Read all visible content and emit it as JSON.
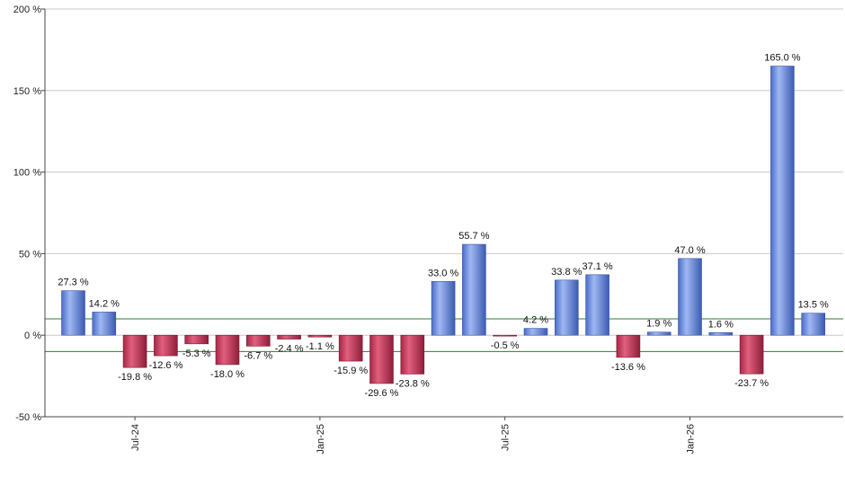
{
  "chart_data": {
    "type": "bar",
    "ylim": [
      -50,
      200
    ],
    "y_ticks": [
      {
        "value": 200,
        "label": "200 %"
      },
      {
        "value": 150,
        "label": "150 %"
      },
      {
        "value": 100,
        "label": "100 %"
      },
      {
        "value": 50,
        "label": "50 %"
      },
      {
        "value": 0,
        "label": "0 %"
      },
      {
        "value": -50,
        "label": "-50 %"
      }
    ],
    "x_ticks": [
      {
        "index": 2,
        "label": "Jul-24"
      },
      {
        "index": 8,
        "label": "Jan-25"
      },
      {
        "index": 14,
        "label": "Jul-25"
      },
      {
        "index": 20,
        "label": "Jan-26"
      }
    ],
    "reference_lines": [
      10,
      -10
    ],
    "values": [
      27.3,
      14.2,
      -19.8,
      -12.6,
      -5.3,
      -18.0,
      -6.7,
      -2.4,
      -1.1,
      -15.9,
      -29.6,
      -23.8,
      33.0,
      55.7,
      -0.5,
      4.2,
      33.8,
      37.1,
      -13.6,
      1.9,
      47.0,
      1.6,
      -23.7,
      165.0,
      13.5
    ],
    "labels": [
      "27.3 %",
      "14.2 %",
      "-19.8 %",
      "-12.6 %",
      "-5.3 %",
      "-18.0 %",
      "-6.7 %",
      "-2.4 %",
      "-1.1 %",
      "-15.9 %",
      "-29.6 %",
      "-23.8 %",
      "33.0 %",
      "55.7 %",
      "-0.5 %",
      "4.2 %",
      "33.8 %",
      "37.1 %",
      "-13.6 %",
      "1.9 %",
      "47.0 %",
      "1.6 %",
      "-23.7 %",
      "165.0 %",
      "13.5 %"
    ],
    "colors": {
      "positive": "#6f8fe0",
      "negative": "#c8385a",
      "reference": "#2e7d32",
      "grid": "#c8c8c8",
      "axis": "#444444"
    },
    "grid": true
  }
}
